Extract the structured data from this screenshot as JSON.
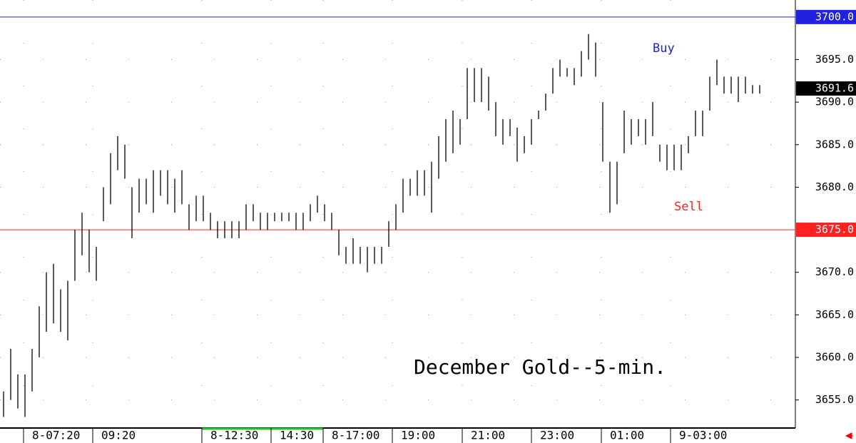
{
  "chart_data": {
    "type": "ohlc",
    "title": "December Gold--5-min.",
    "x": [
      0,
      1,
      2,
      3,
      4,
      5,
      6,
      7,
      8,
      9,
      10,
      11,
      12,
      13,
      14,
      15,
      16,
      17,
      18,
      19,
      20,
      21,
      22,
      23,
      24,
      25,
      26,
      27,
      28,
      29,
      30,
      31,
      32,
      33,
      34,
      35,
      36,
      37,
      38,
      39,
      40,
      41,
      42,
      43,
      44,
      45,
      46,
      47,
      48,
      49,
      50,
      51,
      52,
      53,
      54,
      55,
      56,
      57,
      58,
      59,
      60,
      61,
      62,
      63,
      64,
      65,
      66,
      67,
      68,
      69,
      70,
      71,
      72,
      73,
      74,
      75,
      76,
      77,
      78,
      79,
      80,
      81,
      82,
      83,
      84,
      85,
      86,
      87,
      88,
      89,
      90,
      91,
      92,
      93,
      94,
      95,
      96,
      97,
      98,
      99,
      100,
      101,
      102,
      103,
      104,
      105,
      106
    ],
    "series": [
      {
        "color": "#000000",
        "high": [
          3656,
          3661,
          3658,
          3658,
          3661,
          3666,
          3670,
          3671,
          3668,
          3669,
          3675,
          3677,
          3675,
          3673,
          3680,
          3684,
          3686,
          3685,
          3680,
          3681,
          3681,
          3682,
          3682,
          3682,
          3681,
          3682,
          3678,
          3679,
          3679,
          3677,
          3676,
          3676,
          3676,
          3676,
          3678,
          3678,
          3677,
          3677,
          3677,
          3677,
          3677,
          3677,
          3677,
          3678,
          3679,
          3678,
          3677,
          3675,
          3673,
          3674,
          3673,
          3673,
          3673,
          3673,
          3676,
          3678,
          3681,
          3681,
          3682,
          3682,
          3683,
          3686,
          3688,
          3689,
          3688,
          3694,
          3694,
          3694,
          3693,
          3690,
          3688,
          3688,
          3687,
          3686,
          3688,
          3689,
          3691,
          3694,
          3695,
          3694,
          3694,
          3696,
          3698,
          3697,
          3690,
          3683,
          3683,
          3689,
          3688,
          3688,
          3688,
          3690,
          3685,
          3685,
          3685,
          3685,
          3686,
          3689,
          3689,
          3693,
          3695,
          3693,
          3693,
          3693,
          3693,
          3692,
          3692
        ],
        "low": [
          3653,
          3655,
          3654,
          3653,
          3656,
          3660,
          3663,
          3664,
          3663,
          3662,
          3669,
          3672,
          3670,
          3669,
          3676,
          3678,
          3682,
          3681,
          3674,
          3677,
          3678,
          3677,
          3679,
          3678,
          3677,
          3678,
          3675,
          3676,
          3676,
          3675,
          3674,
          3674,
          3674,
          3674,
          3675,
          3676,
          3675,
          3675,
          3676,
          3676,
          3676,
          3675,
          3675,
          3676,
          3677,
          3676,
          3675,
          3672,
          3671,
          3671,
          3671,
          3670,
          3671,
          3671,
          3673,
          3675,
          3677,
          3679,
          3679,
          3679,
          3677,
          3681,
          3683,
          3684,
          3685,
          3688,
          3690,
          3690,
          3689,
          3686,
          3685,
          3686,
          3683,
          3684,
          3685,
          3688,
          3689,
          3691,
          3693,
          3693,
          3692,
          3693,
          3695,
          3693,
          3683,
          3677,
          3678,
          3684,
          3685,
          3686,
          3685,
          3686,
          3683,
          3682,
          3682,
          3682,
          3684,
          3686,
          3686,
          3689,
          3692,
          3691,
          3691,
          3690,
          3691,
          3691,
          3691
        ]
      }
    ],
    "lines": [
      {
        "name": "Buy",
        "value": 3700,
        "label": "3700.0",
        "color": "#2020e0"
      },
      {
        "name": "Sell",
        "value": 3675,
        "label": "3675.0",
        "color": "#ff2020"
      }
    ],
    "last": {
      "value": 3691.6,
      "label": "3691.6"
    },
    "xlim": [
      -0.5,
      111
    ],
    "ylim": [
      3651.7,
      3702
    ],
    "xticks": [
      {
        "value": 2.8,
        "label": "8-07:20"
      },
      {
        "value": 12.5,
        "label": "09:20"
      },
      {
        "value": 27.8,
        "label": "8-12:30"
      },
      {
        "value": 37.5,
        "label": "14:30"
      },
      {
        "value": 44.8,
        "label": "8-17:00"
      },
      {
        "value": 54.5,
        "label": "19:00"
      },
      {
        "value": 64.3,
        "label": "21:00"
      },
      {
        "value": 74,
        "label": "23:00"
      },
      {
        "value": 83.8,
        "label": "01:00"
      },
      {
        "value": 93.5,
        "label": "9-03:00"
      }
    ],
    "yticks": [
      {
        "value": 3655,
        "label": "3655.0"
      },
      {
        "value": 3660,
        "label": "3660.0"
      },
      {
        "value": 3665,
        "label": "3665.0"
      },
      {
        "value": 3670,
        "label": "3670.0"
      },
      {
        "value": 3680,
        "label": "3680.0"
      },
      {
        "value": 3685,
        "label": "3685.0"
      },
      {
        "value": 3690,
        "label": "3690.0"
      },
      {
        "value": 3695,
        "label": "3695.0"
      }
    ],
    "grid": true
  }
}
